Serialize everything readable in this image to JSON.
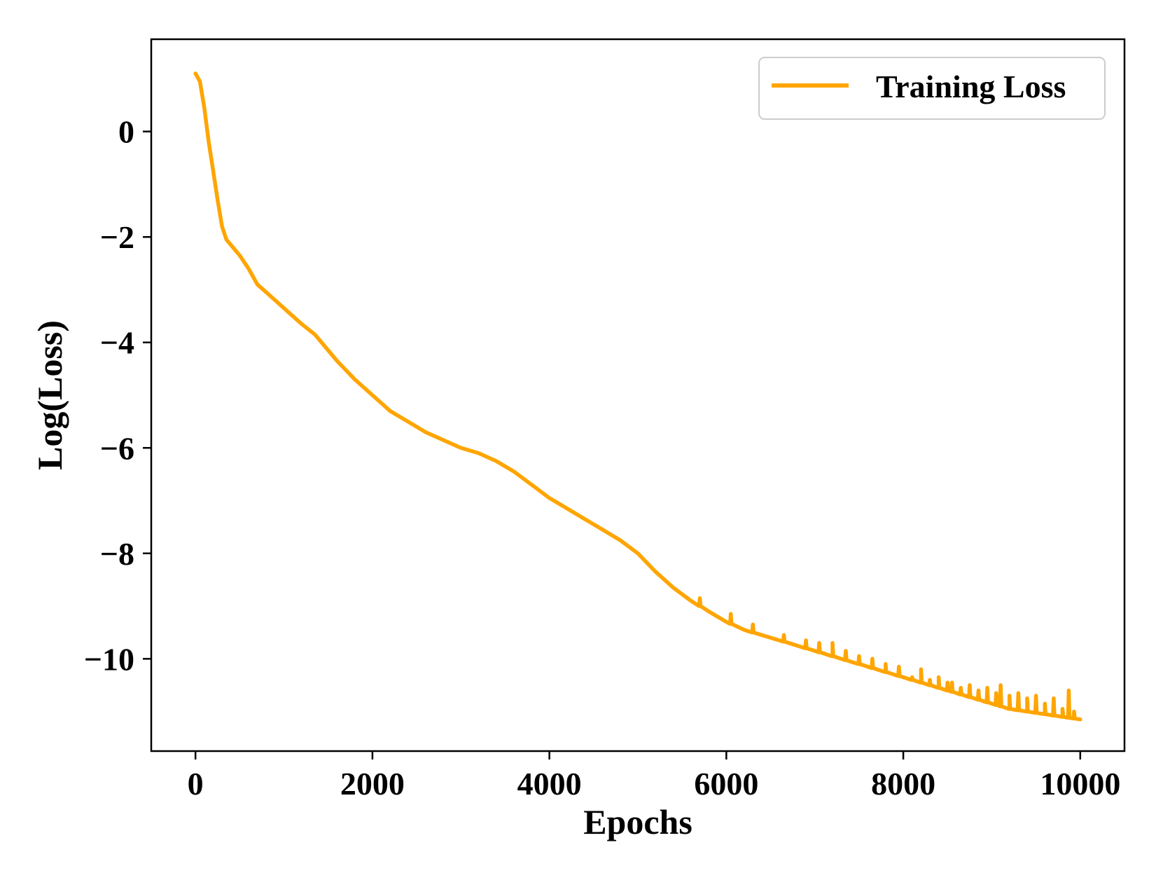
{
  "chart_data": {
    "type": "line",
    "title": "",
    "xlabel": "Epochs",
    "ylabel": "Log(Loss)",
    "xlim": [
      -500,
      10500
    ],
    "ylim": [
      -11.75,
      1.75
    ],
    "xticks": [
      0,
      2000,
      4000,
      6000,
      8000,
      10000
    ],
    "xtick_labels": [
      "0",
      "2000",
      "4000",
      "6000",
      "8000",
      "10000"
    ],
    "yticks": [
      0,
      -2,
      -4,
      -6,
      -8,
      -10
    ],
    "ytick_labels": [
      "0",
      "−2",
      "−4",
      "−6",
      "−8",
      "−10"
    ],
    "grid": false,
    "legend_position": "top-right",
    "colors": {
      "series": "#FFA500",
      "axes": "#000000",
      "legend_border": "#cccccc"
    },
    "series": [
      {
        "name": "Training Loss",
        "x": [
          0,
          50,
          100,
          150,
          200,
          250,
          300,
          350,
          400,
          500,
          600,
          700,
          800,
          1000,
          1200,
          1350,
          1400,
          1600,
          1800,
          2000,
          2200,
          2400,
          2600,
          2800,
          3000,
          3200,
          3400,
          3600,
          3800,
          4000,
          4200,
          4400,
          4600,
          4800,
          5000,
          5200,
          5400,
          5600,
          5800,
          6000,
          6200,
          6400,
          6600,
          6800,
          7000,
          7200,
          7400,
          7600,
          7800,
          8000,
          8200,
          8400,
          8600,
          8800,
          9000,
          9200,
          9400,
          9600,
          9800,
          10000
        ],
        "y": [
          1.1,
          0.95,
          0.45,
          -0.2,
          -0.75,
          -1.3,
          -1.8,
          -2.05,
          -2.15,
          -2.35,
          -2.6,
          -2.9,
          -3.05,
          -3.35,
          -3.65,
          -3.85,
          -3.95,
          -4.35,
          -4.7,
          -5.0,
          -5.3,
          -5.5,
          -5.7,
          -5.85,
          -6.0,
          -6.1,
          -6.25,
          -6.45,
          -6.7,
          -6.95,
          -7.15,
          -7.35,
          -7.55,
          -7.75,
          -8.0,
          -8.35,
          -8.65,
          -8.9,
          -9.1,
          -9.3,
          -9.45,
          -9.55,
          -9.65,
          -9.75,
          -9.85,
          -9.95,
          -10.05,
          -10.15,
          -10.25,
          -10.35,
          -10.45,
          -10.55,
          -10.65,
          -10.75,
          -10.85,
          -10.95,
          -11.0,
          -11.05,
          -11.1,
          -11.15
        ]
      }
    ],
    "spikes": {
      "x": [
        5700,
        6050,
        6300,
        6650,
        6900,
        7050,
        7200,
        7350,
        7500,
        7650,
        7800,
        7950,
        8100,
        8200,
        8300,
        8400,
        8500,
        8550,
        8650,
        8750,
        8850,
        8950,
        9050,
        9100,
        9200,
        9300,
        9400,
        9500,
        9600,
        9700,
        9800,
        9870,
        9930
      ],
      "y": [
        -8.85,
        -9.15,
        -9.35,
        -9.55,
        -9.65,
        -9.7,
        -9.7,
        -9.85,
        -9.95,
        -10.0,
        -10.1,
        -10.15,
        -10.35,
        -10.2,
        -10.4,
        -10.35,
        -10.45,
        -10.45,
        -10.55,
        -10.5,
        -10.6,
        -10.55,
        -10.65,
        -10.5,
        -10.7,
        -10.65,
        -10.75,
        -10.7,
        -10.85,
        -10.75,
        -10.95,
        -10.6,
        -11.0
      ]
    }
  }
}
